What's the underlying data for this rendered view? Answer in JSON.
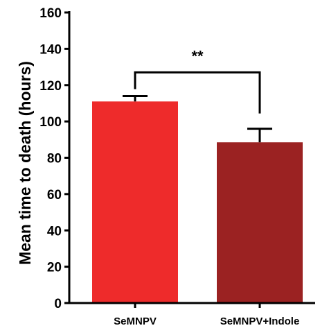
{
  "chart_data": {
    "type": "bar",
    "categories": [
      "SeMNPV",
      "SeMNPV+Indole"
    ],
    "values": [
      111,
      88.5
    ],
    "errors": [
      3,
      7.5
    ],
    "colors": [
      "#ee2b2b",
      "#9b2222"
    ],
    "ylabel": "Mean time to death (hours)",
    "xlabel": "",
    "ylim": [
      0,
      160
    ],
    "yticks": [
      0,
      20,
      40,
      60,
      80,
      100,
      120,
      140,
      160
    ],
    "grid": false,
    "annotation": {
      "text": "**",
      "between": [
        0,
        1
      ]
    }
  }
}
